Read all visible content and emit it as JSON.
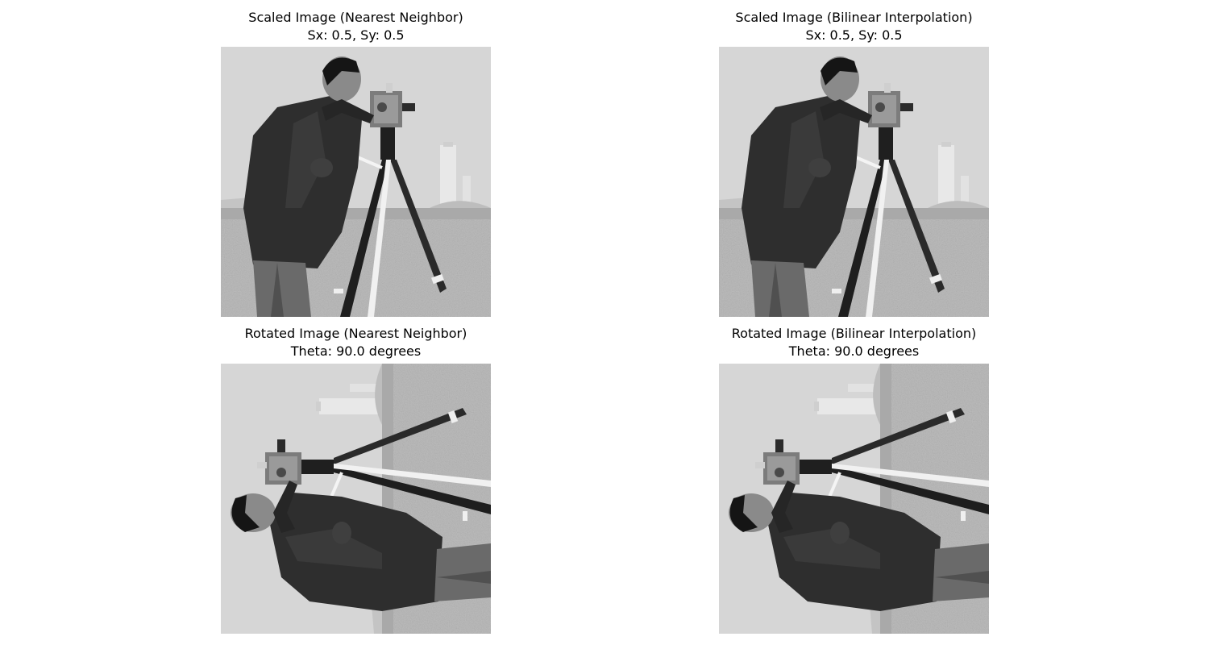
{
  "panels": [
    {
      "line1": "Scaled Image (Nearest Neighbor)",
      "line2": "Sx: 0.5, Sy: 0.5",
      "image": "cameraman-photo-scaled-nearest"
    },
    {
      "line1": "Scaled Image (Bilinear Interpolation)",
      "line2": "Sx: 0.5, Sy: 0.5",
      "image": "cameraman-photo-scaled-bilinear"
    },
    {
      "line1": "Rotated Image (Nearest Neighbor)",
      "line2": "Theta: 90.0 degrees",
      "image": "cameraman-photo-rotated-nearest"
    },
    {
      "line1": "Rotated Image (Bilinear Interpolation)",
      "line2": "Theta: 90.0 degrees",
      "image": "cameraman-photo-rotated-bilinear"
    }
  ]
}
